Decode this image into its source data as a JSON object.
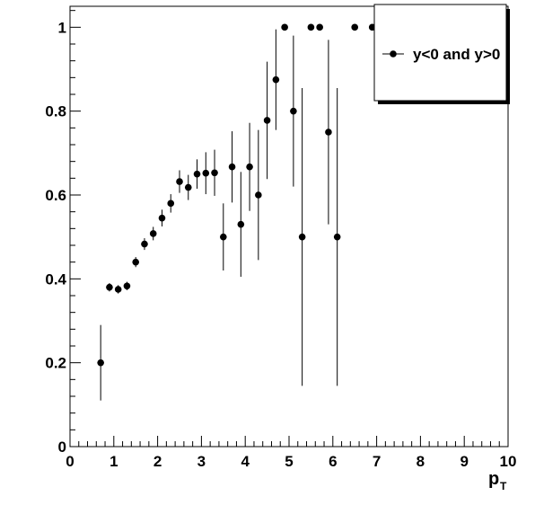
{
  "chart_data": {
    "type": "scatter",
    "title": "",
    "xlabel": "p",
    "xlabel_subscript": "T",
    "ylabel": "",
    "xlim": [
      0,
      10
    ],
    "ylim": [
      0,
      1.05
    ],
    "grid": false,
    "legend_position": "top-right",
    "x_ticks": [
      "0",
      "1",
      "2",
      "3",
      "4",
      "5",
      "6",
      "7",
      "8",
      "9",
      "10"
    ],
    "y_ticks": [
      "0",
      "0.2",
      "0.4",
      "0.6",
      "0.8",
      "1"
    ],
    "series": [
      {
        "name": "y<0 and y>0",
        "color": "#000000",
        "points": [
          {
            "x": 0.7,
            "y": 0.2,
            "err": 0.09
          },
          {
            "x": 0.9,
            "y": 0.38,
            "err": 0.01
          },
          {
            "x": 1.1,
            "y": 0.375,
            "err": 0.01
          },
          {
            "x": 1.3,
            "y": 0.383,
            "err": 0.01
          },
          {
            "x": 1.5,
            "y": 0.44,
            "err": 0.012
          },
          {
            "x": 1.7,
            "y": 0.483,
            "err": 0.014
          },
          {
            "x": 1.9,
            "y": 0.508,
            "err": 0.016
          },
          {
            "x": 2.1,
            "y": 0.545,
            "err": 0.02
          },
          {
            "x": 2.3,
            "y": 0.58,
            "err": 0.022
          },
          {
            "x": 2.5,
            "y": 0.632,
            "err": 0.027
          },
          {
            "x": 2.7,
            "y": 0.618,
            "err": 0.03
          },
          {
            "x": 2.9,
            "y": 0.65,
            "err": 0.035
          },
          {
            "x": 3.1,
            "y": 0.652,
            "err": 0.05
          },
          {
            "x": 3.3,
            "y": 0.653,
            "err": 0.055
          },
          {
            "x": 3.5,
            "y": 0.5,
            "err": 0.08
          },
          {
            "x": 3.7,
            "y": 0.667,
            "err": 0.085
          },
          {
            "x": 3.9,
            "y": 0.53,
            "err": 0.125
          },
          {
            "x": 4.1,
            "y": 0.667,
            "err": 0.105
          },
          {
            "x": 4.3,
            "y": 0.6,
            "err": 0.155
          },
          {
            "x": 4.5,
            "y": 0.778,
            "err": 0.14
          },
          {
            "x": 4.7,
            "y": 0.875,
            "err": 0.12
          },
          {
            "x": 4.9,
            "y": 1.0,
            "err": 0.0
          },
          {
            "x": 5.1,
            "y": 0.8,
            "err": 0.18
          },
          {
            "x": 5.3,
            "y": 0.5,
            "err": 0.355
          },
          {
            "x": 5.5,
            "y": 1.0,
            "err": 0.0
          },
          {
            "x": 5.7,
            "y": 1.0,
            "err": 0.0
          },
          {
            "x": 5.9,
            "y": 0.75,
            "err": 0.22
          },
          {
            "x": 6.1,
            "y": 0.5,
            "err": 0.355
          },
          {
            "x": 6.5,
            "y": 1.0,
            "err": 0.0
          },
          {
            "x": 6.9,
            "y": 1.0,
            "err": 0.0
          }
        ]
      }
    ]
  }
}
